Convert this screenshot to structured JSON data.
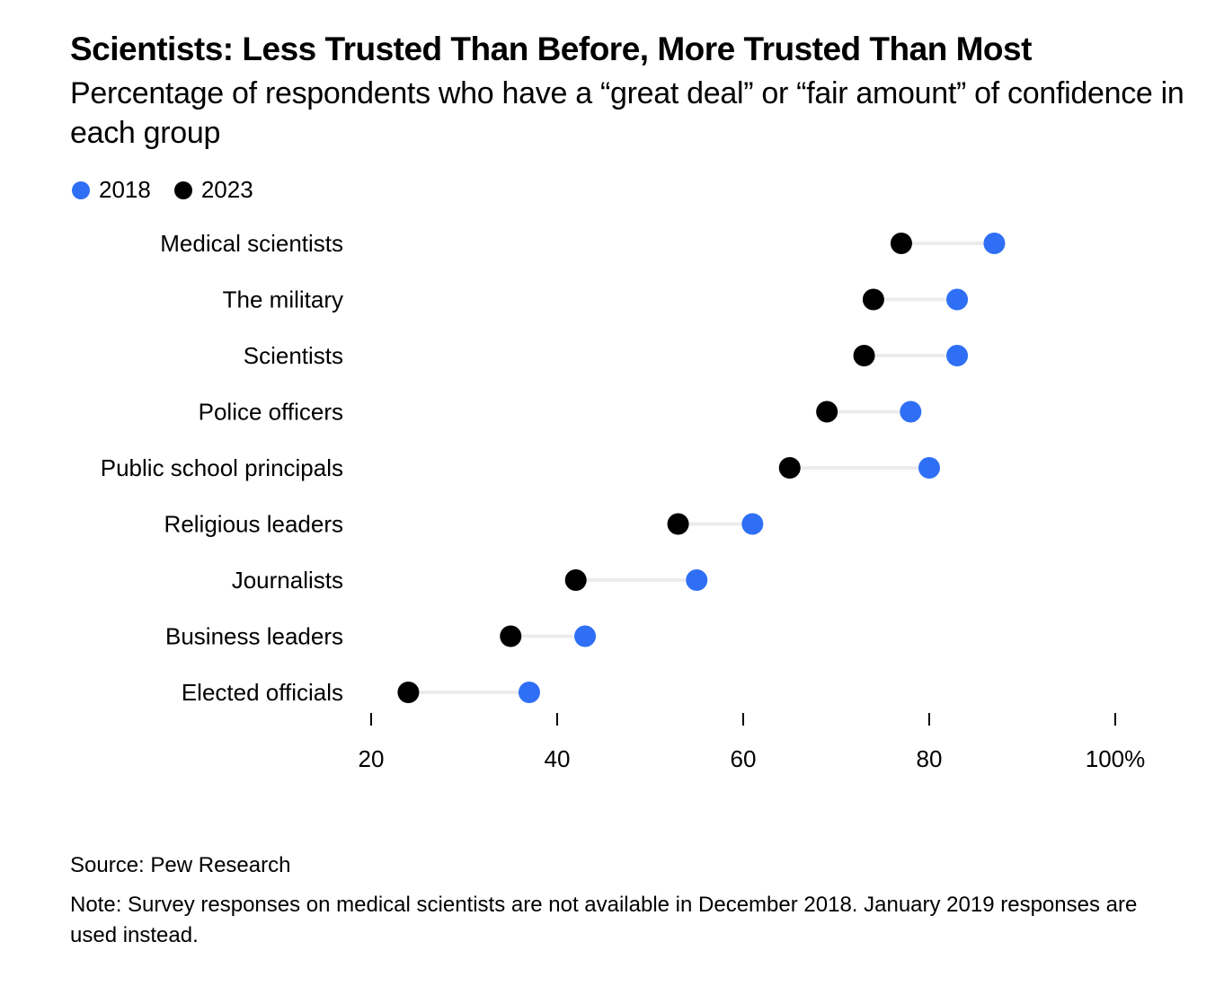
{
  "header": {
    "title": "Scientists: Less Trusted Than Before, More Trusted Than Most",
    "subtitle": "Percentage of respondents who have a “great deal” or “fair amount” of confidence in each group"
  },
  "legend": [
    {
      "label": "2018",
      "color": "#2f6ff5"
    },
    {
      "label": "2023",
      "color": "#000000"
    }
  ],
  "footer": {
    "source": "Source: Pew Research",
    "note": "Note: Survey responses on medical scientists are not available in December 2018. January 2019 responses are used instead."
  },
  "chart_data": {
    "type": "dumbbell",
    "title": "Scientists: Less Trusted Than Before, More Trusted Than Most",
    "subtitle": "Percentage of respondents who have a “great deal” or “fair amount” of confidence in each group",
    "xlabel": "",
    "ylabel": "",
    "xlim": [
      20,
      100
    ],
    "x_ticks": [
      20,
      40,
      60,
      80,
      100
    ],
    "x_tick_labels": [
      "20",
      "40",
      "60",
      "80",
      "100%"
    ],
    "grid": false,
    "legend_position": "top-left",
    "categories": [
      "Medical scientists",
      "The military",
      "Scientists",
      "Police officers",
      "Public school principals",
      "Religious leaders",
      "Journalists",
      "Business leaders",
      "Elected officials"
    ],
    "series": [
      {
        "name": "2018",
        "color": "#2f6ff5",
        "values": [
          87,
          83,
          83,
          78,
          80,
          61,
          55,
          43,
          37
        ]
      },
      {
        "name": "2023",
        "color": "#000000",
        "values": [
          77,
          74,
          73,
          69,
          65,
          53,
          42,
          35,
          24
        ]
      }
    ],
    "connector_color": "#ececec"
  }
}
